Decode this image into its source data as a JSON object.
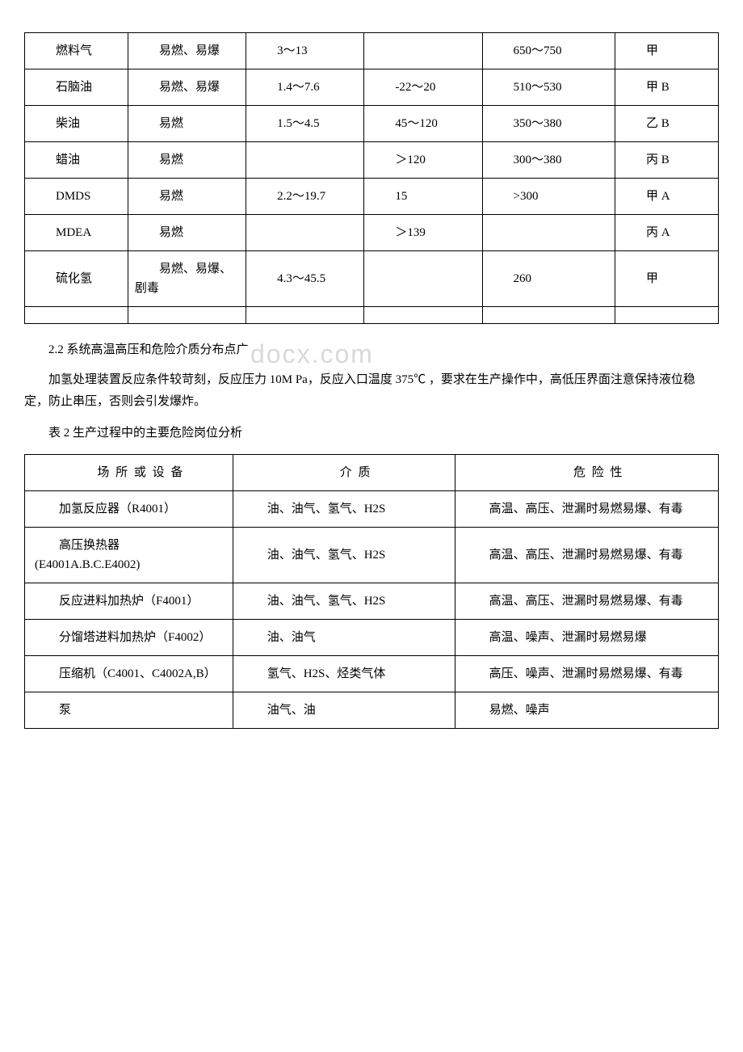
{
  "table1": {
    "rows": [
      {
        "c1": "燃料气",
        "c2": "易燃、易爆",
        "c3": "3～13",
        "c4": "",
        "c5": "650～750",
        "c6": "甲"
      },
      {
        "c1": "石脑油",
        "c2": "易燃、易爆",
        "c3": "1.4～7.6",
        "c4": "-22～20",
        "c5": "510～530",
        "c6": "甲 B"
      },
      {
        "c1": "柴油",
        "c2": "易燃",
        "c3": "1.5～4.5",
        "c4": "45～120",
        "c5": "350～380",
        "c6": "乙 B"
      },
      {
        "c1": "蜡油",
        "c2": "易燃",
        "c3": "",
        "c4": "＞120",
        "c5": "300～380",
        "c6": "丙 B"
      },
      {
        "c1": "DMDS",
        "c2": "易燃",
        "c3": "2.2～19.7",
        "c4": "15",
        "c5": ">300",
        "c6": "甲 A"
      },
      {
        "c1": "MDEA",
        "c2": "易燃",
        "c3": "",
        "c4": "＞139",
        "c5": "",
        "c6": "丙 A"
      },
      {
        "c1": "硫化氢",
        "c2": "易燃、易爆、剧毒",
        "c3": "4.3～45.5",
        "c4": "",
        "c5": "260",
        "c6": "甲"
      },
      {
        "c1": "",
        "c2": "",
        "c3": "",
        "c4": "",
        "c5": "",
        "c6": ""
      }
    ]
  },
  "section_title": "2.2 系统高温高压和危险介质分布点广",
  "watermark_text": "docx.com",
  "paragraph1": "加氢处理装置反应条件较苛刻，反应压力 10M Pa，反应入口温度 375℃ ，要求在生产操作中，高低压界面注意保持液位稳定，防止串压，否则会引发爆炸。",
  "table2_caption": "表 2 生产过程中的主要危险岗位分析",
  "table2": {
    "header": {
      "c1": "场 所 或 设 备",
      "c2": "介 质",
      "c3": "危 险 性"
    },
    "rows": [
      {
        "c1": "加氢反应器（R4001）",
        "c2": "油、油气、氢气、H2S",
        "c3": "高温、高压、泄漏时易燃易爆、有毒"
      },
      {
        "c1": "高压换热器(E4001A.B.C.E4002)",
        "c2": "油、油气、氢气、H2S",
        "c3": "高温、高压、泄漏时易燃易爆、有毒"
      },
      {
        "c1": "反应进料加热炉（F4001）",
        "c2": "油、油气、氢气、H2S",
        "c3": "高温、高压、泄漏时易燃易爆、有毒"
      },
      {
        "c1": "分馏塔进料加热炉（F4002）",
        "c2": "油、油气",
        "c3": "高温、噪声、泄漏时易燃易爆"
      },
      {
        "c1": "压缩机（C4001、C4002A,B）",
        "c2": "氢气、H2S、烃类气体",
        "c3": "高压、噪声、泄漏时易燃易爆、有毒"
      },
      {
        "c1": "泵",
        "c2": "油气、油",
        "c3": "易燃、噪声"
      }
    ]
  }
}
